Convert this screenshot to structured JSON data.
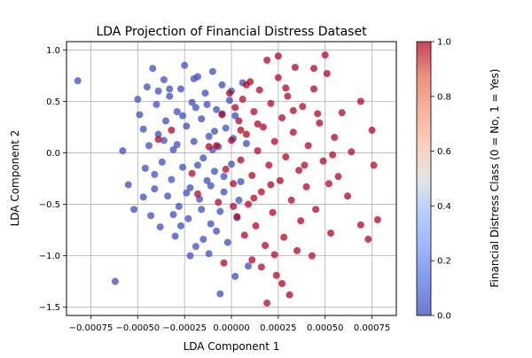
{
  "chart_data": {
    "type": "scatter",
    "title": "LDA Projection of Financial Distress Dataset",
    "xlabel": "LDA Component 1",
    "ylabel": "LDA Component 2",
    "xlim": [
      -0.00088,
      0.00088
    ],
    "ylim": [
      -1.58,
      1.08
    ],
    "x_ticks": [
      -0.00075,
      -0.0005,
      -0.00025,
      0.0,
      0.00025,
      0.0005,
      0.00075
    ],
    "x_tick_labels": [
      "−0.00075",
      "−0.00050",
      "−0.00025",
      "0.00000",
      "0.00025",
      "0.00050",
      "0.00075"
    ],
    "y_ticks": [
      1.0,
      0.5,
      0.0,
      -0.5,
      -1.0,
      -1.5
    ],
    "y_tick_labels": [
      "1.0",
      "0.5",
      "0.0",
      "−0.5",
      "−1.0",
      "−1.5"
    ],
    "grid": true,
    "colormap": "coolwarm",
    "colors": {
      "class_0": "#3b4cc0",
      "class_1": "#b40426"
    },
    "colorbar": {
      "label": "Financial Distress Class (0 = No, 1 = Yes)",
      "range": [
        0.0,
        1.0
      ],
      "ticks": [
        0.0,
        0.2,
        0.4,
        0.6,
        0.8,
        1.0
      ],
      "tick_labels": [
        "0.0",
        "0.2",
        "0.4",
        "0.6",
        "0.8",
        "1.0"
      ],
      "placement": "right"
    },
    "series": [
      {
        "class": 0,
        "points": [
          [
            -0.00082,
            0.7
          ],
          [
            -0.00062,
            -1.25
          ],
          [
            -0.00058,
            0.02
          ],
          [
            -0.00055,
            -0.31
          ],
          [
            -0.00052,
            -0.55
          ],
          [
            -0.0005,
            0.52
          ],
          [
            -0.00049,
            0.37
          ],
          [
            -0.00047,
            0.23
          ],
          [
            -0.00047,
            -0.43
          ],
          [
            -0.00045,
            0.64
          ],
          [
            -0.00044,
            0.07
          ],
          [
            -0.00043,
            -0.61
          ],
          [
            -0.00042,
            0.82
          ],
          [
            -0.00041,
            -0.21
          ],
          [
            -0.0004,
            0.47
          ],
          [
            -0.00039,
            0.18
          ],
          [
            -0.00038,
            -0.72
          ],
          [
            -0.00037,
            -0.09
          ],
          [
            -0.00036,
            0.71
          ],
          [
            -0.00035,
            0.31
          ],
          [
            -0.00034,
            -0.42
          ],
          [
            -0.00033,
            0.55
          ],
          [
            -0.00032,
            -0.26
          ],
          [
            -0.00031,
            0.03
          ],
          [
            -0.0003,
            -0.81
          ],
          [
            -0.00029,
            0.4
          ],
          [
            -0.00028,
            -0.52
          ],
          [
            -0.00027,
            0.62
          ],
          [
            -0.00026,
            -0.14
          ],
          [
            -0.00025,
            0.85
          ],
          [
            -0.00024,
            0.26
          ],
          [
            -0.00023,
            -0.64
          ],
          [
            -0.00022,
            -0.34
          ],
          [
            -0.00021,
            0.49
          ],
          [
            -0.0002,
            0.11
          ],
          [
            -0.00019,
            -0.91
          ],
          [
            -0.00018,
            0.74
          ],
          [
            -0.00017,
            -0.45
          ],
          [
            -0.00016,
            0.33
          ],
          [
            -0.00015,
            -0.05
          ],
          [
            -0.00014,
            0.58
          ],
          [
            -0.00013,
            -0.27
          ],
          [
            -0.00012,
            0.16
          ],
          [
            -0.00011,
            -0.69
          ],
          [
            -0.0001,
            0.79
          ],
          [
            -9e-05,
            -0.18
          ],
          [
            -8e-05,
            0.42
          ],
          [
            -7e-05,
            0.06
          ],
          [
            -6e-05,
            -0.57
          ],
          [
            -5e-05,
            0.66
          ],
          [
            -4e-05,
            -0.38
          ],
          [
            -3e-05,
            0.24
          ],
          [
            -2e-05,
            -0.87
          ],
          [
            -1e-05,
            0.51
          ],
          [
            0.0,
            -0.11
          ],
          [
            2e-05,
            0.36
          ],
          [
            4e-05,
            -0.46
          ],
          [
            6e-05,
            0.68
          ],
          [
            8e-05,
            0.09
          ],
          [
            -0.00033,
            0.62
          ],
          [
            -0.00019,
            0.44
          ],
          [
            -0.00011,
            -0.32
          ],
          [
            -0.00027,
            -0.71
          ],
          [
            -8e-05,
            -0.76
          ],
          [
            -0.00015,
            -0.84
          ],
          [
            -6e-05,
            -1.37
          ],
          [
            2e-05,
            -1.2
          ],
          [
            -0.00012,
            -0.98
          ],
          [
            -0.00022,
            -1.0
          ],
          [
            9e-05,
            -1.1
          ],
          [
            -0.00041,
            -0.35
          ],
          [
            -0.00036,
            0.12
          ],
          [
            -0.00029,
            0.08
          ],
          [
            -0.00024,
            -0.39
          ],
          [
            -0.00018,
            -0.12
          ],
          [
            -0.00013,
            0.47
          ],
          [
            -9e-05,
            0.21
          ],
          [
            -4e-05,
            -0.23
          ],
          [
            1e-05,
            0.14
          ],
          [
            5e-05,
            -0.28
          ],
          [
            -0.00046,
            -0.15
          ],
          [
            -0.00039,
            0.6
          ],
          [
            -0.00031,
            -0.6
          ],
          [
            -0.00026,
            0.36
          ],
          [
            -0.0002,
            0.72
          ],
          [
            -0.00016,
            -0.55
          ],
          [
            -0.0001,
            0.03
          ],
          [
            -5e-05,
            0.38
          ],
          [
            0.0,
            0.6
          ],
          [
            3e-05,
            -0.63
          ]
        ]
      },
      {
        "class": 1,
        "points": [
          [
            0.00078,
            -0.65
          ],
          [
            0.00076,
            -0.12
          ],
          [
            0.00075,
            0.22
          ],
          [
            0.00073,
            -0.84
          ],
          [
            0.00069,
            -0.7
          ],
          [
            0.00069,
            0.5
          ],
          [
            0.00064,
            0.01
          ],
          [
            0.00062,
            -0.42
          ],
          [
            0.00059,
            0.39
          ],
          [
            0.00057,
            -0.23
          ],
          [
            0.00055,
            0.15
          ],
          [
            0.00053,
            -0.78
          ],
          [
            0.00051,
            0.77
          ],
          [
            0.0005,
            0.95
          ],
          [
            0.00049,
            -0.08
          ],
          [
            0.00047,
            0.29
          ],
          [
            0.00045,
            -0.55
          ],
          [
            0.00044,
            0.62
          ],
          [
            0.00043,
            -1.0
          ],
          [
            0.00041,
            0.07
          ],
          [
            0.0004,
            -0.33
          ],
          [
            0.00038,
            0.45
          ],
          [
            0.00037,
            -0.66
          ],
          [
            0.00036,
            -0.17
          ],
          [
            0.00034,
            0.83
          ],
          [
            0.00033,
            0.2
          ],
          [
            0.00032,
            -0.46
          ],
          [
            0.00031,
            -1.38
          ],
          [
            0.0003,
            0.55
          ],
          [
            0.00029,
            -0.04
          ],
          [
            0.00028,
            -0.82
          ],
          [
            0.00027,
            0.34
          ],
          [
            0.00026,
            -0.27
          ],
          [
            0.00025,
            0.73
          ],
          [
            0.00024,
            -1.19
          ],
          [
            0.00023,
            0.11
          ],
          [
            0.00022,
            -0.58
          ],
          [
            0.00021,
            0.48
          ],
          [
            0.0002,
            -0.12
          ],
          [
            0.00019,
            0.9
          ],
          [
            0.00018,
            -0.9
          ],
          [
            0.00017,
            0.25
          ],
          [
            0.00016,
            -0.38
          ],
          [
            0.00015,
            0.61
          ],
          [
            0.00014,
            0.02
          ],
          [
            0.00013,
            -0.71
          ],
          [
            0.00012,
            0.4
          ],
          [
            0.00011,
            -0.22
          ],
          [
            0.0001,
            0.69
          ],
          [
            9e-05,
            -0.5
          ],
          [
            8e-05,
            0.18
          ],
          [
            7e-05,
            -0.8
          ],
          [
            6e-05,
            0.52
          ],
          [
            5e-05,
            -0.07
          ],
          [
            4e-05,
            0.31
          ],
          [
            3e-05,
            -0.62
          ],
          [
            2e-05,
            0.44
          ],
          [
            1e-05,
            -0.3
          ],
          [
            0.0,
            0.12
          ],
          [
            -1e-05,
            0.58
          ],
          [
            -3e-05,
            -0.16
          ],
          [
            -4e-05,
            -1.07
          ],
          [
            -5e-05,
            0.37
          ],
          [
            -7e-05,
            -0.48
          ],
          [
            -8e-05,
            0.07
          ],
          [
            -0.00012,
            0.06
          ],
          [
            -0.00018,
            -0.4
          ],
          [
            -0.00021,
            -0.2
          ],
          [
            -0.00032,
            0.22
          ],
          [
            -0.00039,
            0.13
          ],
          [
            0.00019,
            -1.46
          ],
          [
            0.00011,
            -1.04
          ],
          [
            0.00025,
            0.94
          ],
          [
            0.00044,
            0.82
          ],
          [
            0.00054,
            -0.02
          ],
          [
            0.00035,
            -0.95
          ],
          [
            0.00027,
            -1.27
          ],
          [
            0.00016,
            -1.11
          ],
          [
            0.00023,
            -0.99
          ],
          [
            0.00014,
            0.28
          ],
          [
            0.00029,
            0.63
          ],
          [
            8e-05,
            0.66
          ],
          [
            0.00039,
            -0.12
          ],
          [
            0.00046,
            0.38
          ],
          [
            0.00052,
            -0.3
          ],
          [
            0.00033,
            0.41
          ],
          [
            0.00021,
            -0.31
          ],
          [
            0.00012,
            -0.44
          ],
          [
            5e-05,
            0.22
          ],
          [
            1e-05,
            -0.52
          ]
        ]
      }
    ]
  }
}
